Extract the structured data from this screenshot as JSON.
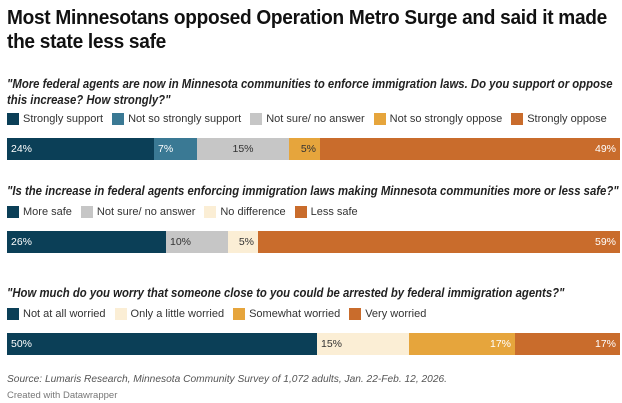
{
  "title": "Most Minnesotans opposed Operation Metro Surge and said it made the state less safe",
  "source": "Source: Lumaris Research, Minnesota Community Survey of 1,072 adults, Jan. 22-Feb. 12, 2026.",
  "credit": "Created with Datawrapper",
  "chart_data": [
    {
      "type": "bar",
      "stacked": true,
      "orientation": "horizontal",
      "title": "\"More federal agents are now in Minnesota communities to enforce immigration laws. Do you support or oppose this increase? How strongly?\"",
      "legend_position": "top-left",
      "series": [
        {
          "name": "Strongly support",
          "value": 24,
          "label": "24%",
          "color": "#0b3f57",
          "label_color": "#ffffff",
          "label_align": "left"
        },
        {
          "name": "Not so strongly support",
          "value": 7,
          "label": "7%",
          "color": "#3a7994",
          "label_color": "#ffffff",
          "label_align": "left"
        },
        {
          "name": "Not sure/ no answer",
          "value": 15,
          "label": "15%",
          "color": "#c6c6c6",
          "label_color": "#333333",
          "label_align": "center"
        },
        {
          "name": "Not so strongly oppose",
          "value": 5,
          "label": "5%",
          "color": "#e6a53c",
          "label_color": "#333333",
          "label_align": "right"
        },
        {
          "name": "Strongly oppose",
          "value": 49,
          "label": "49%",
          "color": "#c96c2c",
          "label_color": "#ffffff",
          "label_align": "right"
        }
      ]
    },
    {
      "type": "bar",
      "stacked": true,
      "orientation": "horizontal",
      "title": "\"Is the increase in federal agents enforcing immigration laws making Minnesota communities more or less safe?\"",
      "legend_position": "top-left",
      "series": [
        {
          "name": "More safe",
          "value": 26,
          "label": "26%",
          "color": "#0b3f57",
          "label_color": "#ffffff",
          "label_align": "left"
        },
        {
          "name": "Not sure/ no answer",
          "value": 10,
          "label": "10%",
          "color": "#c6c6c6",
          "label_color": "#333333",
          "label_align": "left"
        },
        {
          "name": "No difference",
          "value": 5,
          "label": "5%",
          "color": "#fbeed5",
          "label_color": "#333333",
          "label_align": "right"
        },
        {
          "name": "Less safe",
          "value": 59,
          "label": "59%",
          "color": "#c96c2c",
          "label_color": "#ffffff",
          "label_align": "right"
        }
      ]
    },
    {
      "type": "bar",
      "stacked": true,
      "orientation": "horizontal",
      "title": "\"How much do you worry that someone close to you could be arrested by federal immigration agents?\"",
      "legend_position": "top-left",
      "series": [
        {
          "name": "Not at all worried",
          "value": 50,
          "label": "50%",
          "color": "#0b3f57",
          "label_color": "#ffffff",
          "label_align": "left"
        },
        {
          "name": "Only a little worried",
          "value": 15,
          "label": "15%",
          "color": "#fbeed5",
          "label_color": "#333333",
          "label_align": "left"
        },
        {
          "name": "Somewhat worried",
          "value": 17,
          "label": "17%",
          "color": "#e6a53c",
          "label_color": "#ffffff",
          "label_align": "right"
        },
        {
          "name": "Very worried",
          "value": 17,
          "label": "17%",
          "color": "#c96c2c",
          "label_color": "#ffffff",
          "label_align": "right"
        }
      ]
    }
  ]
}
